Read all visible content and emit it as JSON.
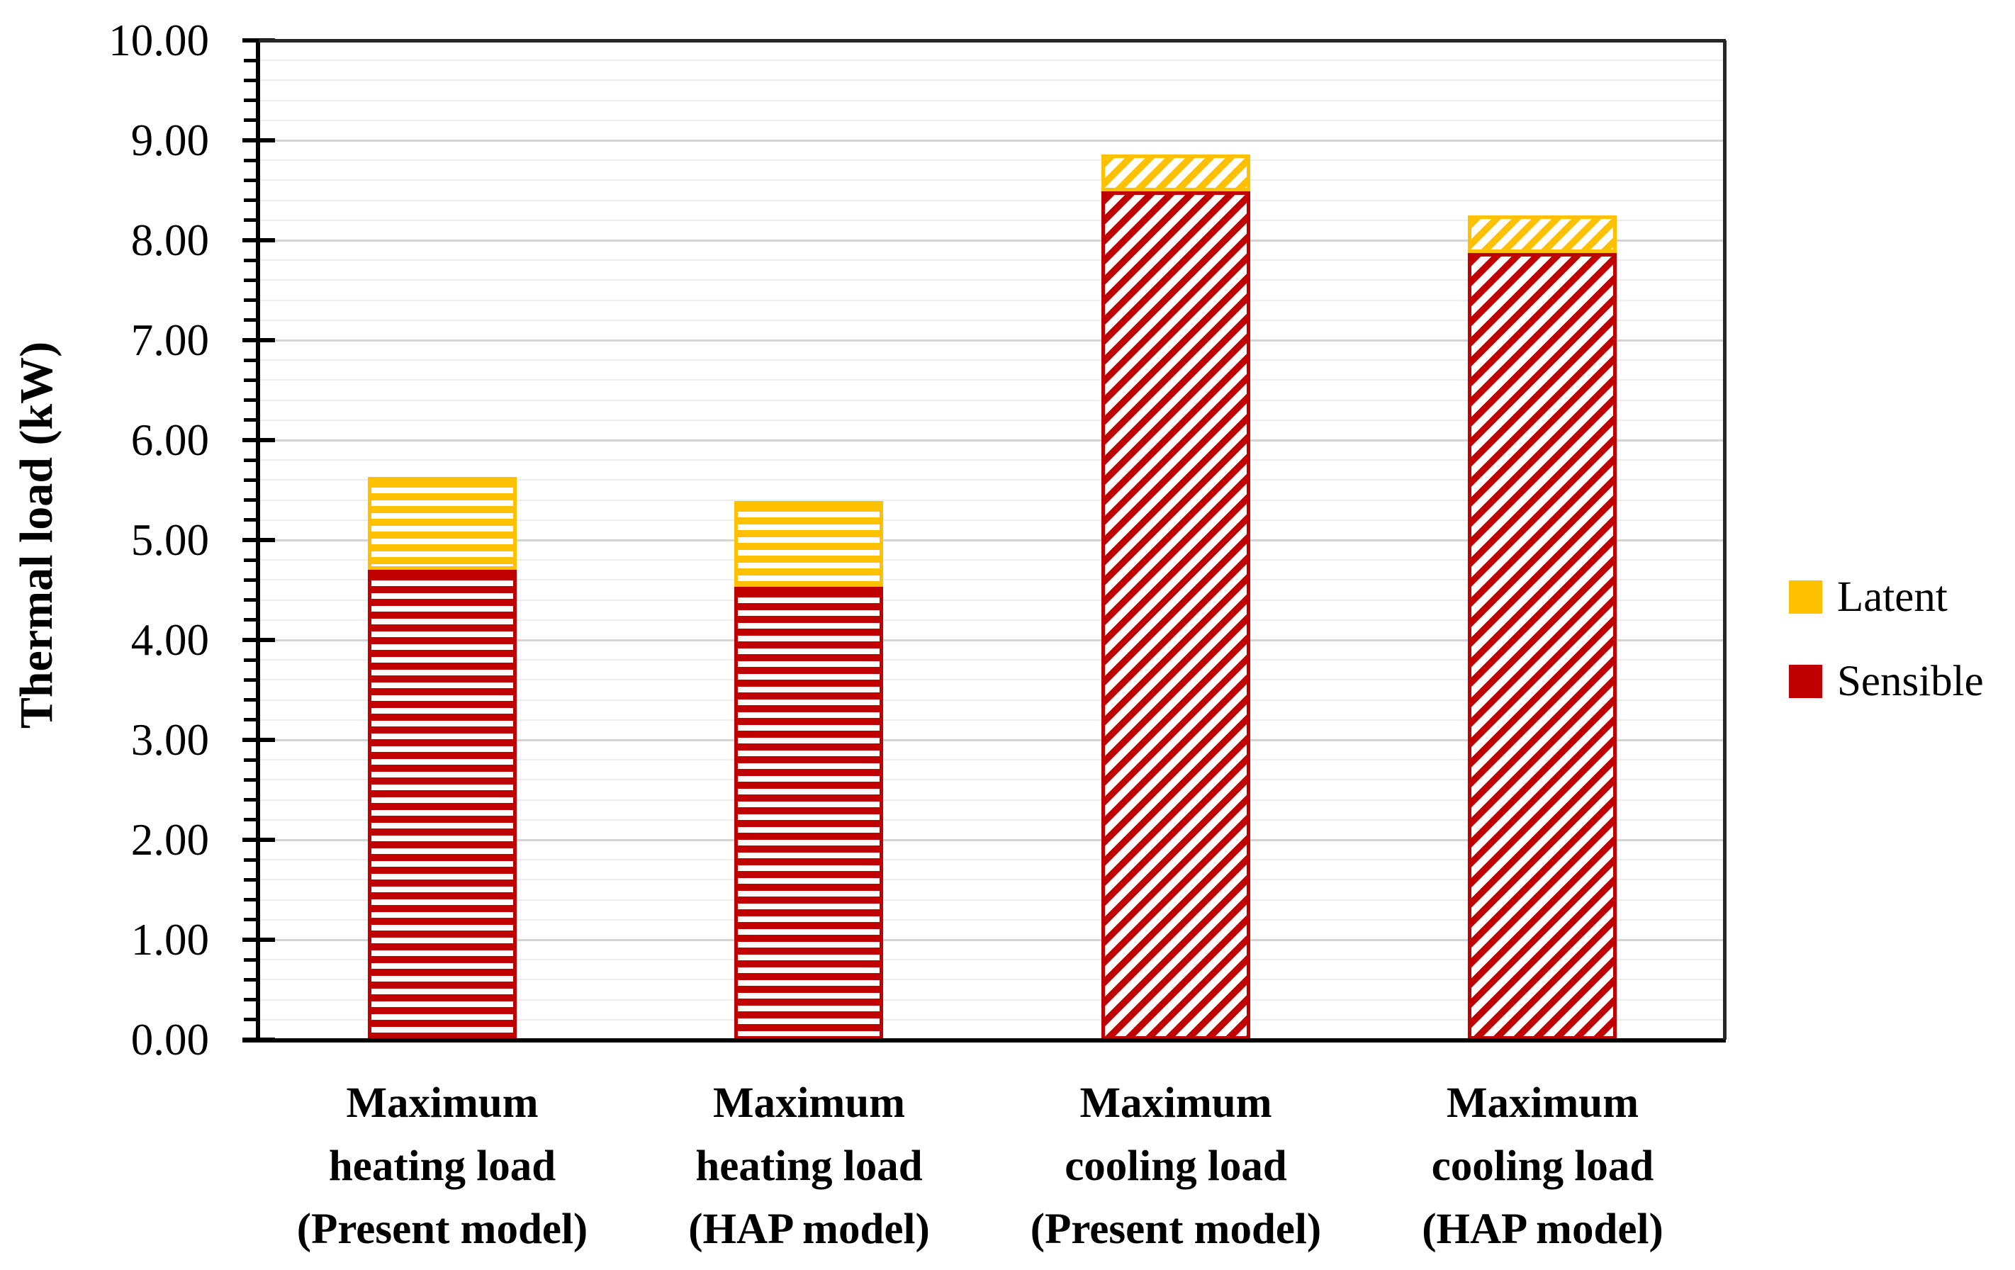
{
  "chart_data": {
    "type": "bar",
    "stacked": true,
    "orientation": "vertical",
    "title": "",
    "xlabel": "",
    "ylabel": "Thermal load (kW)",
    "ylim": [
      0,
      10
    ],
    "ytick_step": 1,
    "minor_gridline_step": 0.2,
    "ytick_labels": [
      "0.00",
      "1.00",
      "2.00",
      "3.00",
      "4.00",
      "5.00",
      "6.00",
      "7.00",
      "8.00",
      "9.00",
      "10.00"
    ],
    "grid": "on",
    "background_color": "#FFFFFF",
    "categories": [
      {
        "lines": [
          "Maximum",
          "heating load",
          "(Present model)"
        ]
      },
      {
        "lines": [
          "Maximum",
          "heating load",
          "(HAP model)"
        ]
      },
      {
        "lines": [
          "Maximum",
          "cooling load",
          "(Present model)"
        ]
      },
      {
        "lines": [
          "Maximum",
          "cooling load",
          "(HAP model)"
        ]
      }
    ],
    "series": [
      {
        "name": "Sensible",
        "color": "#C00000",
        "values": [
          4.7,
          4.53,
          8.49,
          7.87
        ],
        "hatch_by_category": [
          "horizontal",
          "horizontal",
          "diagonal",
          "diagonal"
        ]
      },
      {
        "name": "Latent",
        "color": "#FFC000",
        "values": [
          0.93,
          0.86,
          0.37,
          0.38
        ],
        "hatch_by_category": [
          "horizontal",
          "horizontal",
          "diagonal",
          "diagonal"
        ]
      }
    ],
    "totals_by_category": [
      5.63,
      5.39,
      8.86,
      8.25
    ],
    "legend": {
      "position": "right",
      "entries": [
        {
          "label": "Latent",
          "color": "#FFC000"
        },
        {
          "label": "Sensible",
          "color": "#C00000"
        }
      ]
    }
  }
}
